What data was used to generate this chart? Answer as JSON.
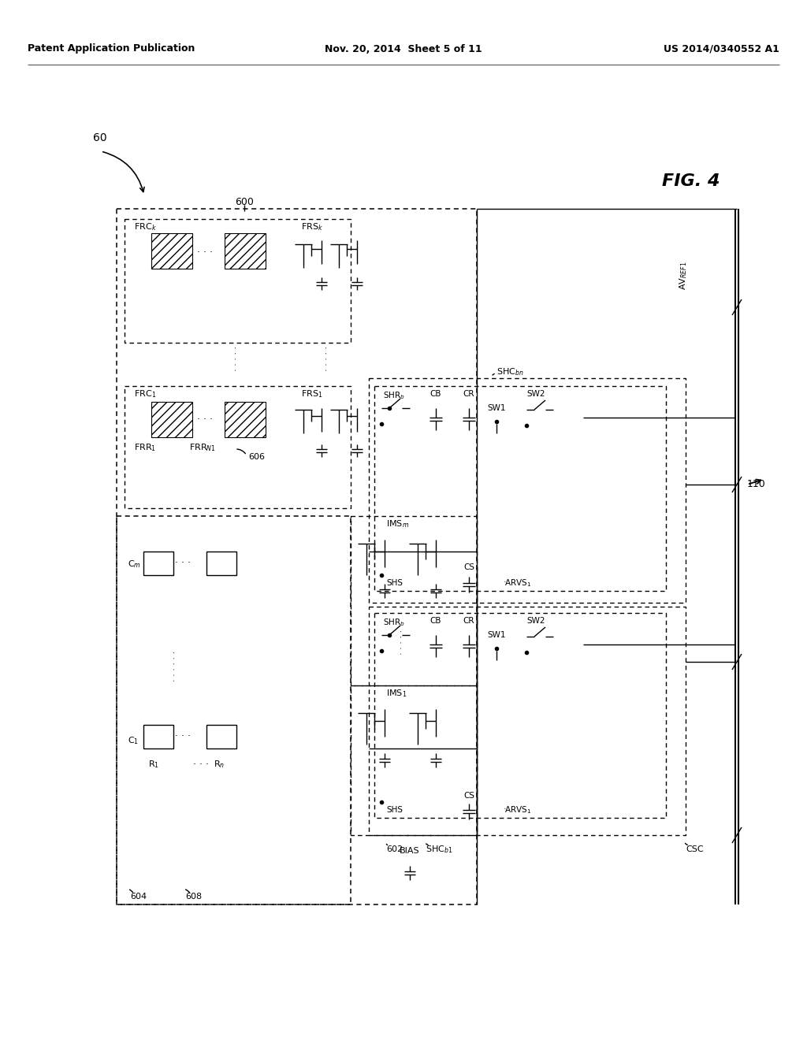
{
  "header_left": "Patent Application Publication",
  "header_center": "Nov. 20, 2014  Sheet 5 of 11",
  "header_right": "US 2014/0340552 A1",
  "bg_color": "#ffffff",
  "fig_number": "FIG. 4",
  "top_label": "60",
  "labels": {
    "n600": "600",
    "n604": "604",
    "n606": "606",
    "n608": "608",
    "n602": "602",
    "n110": "110",
    "FRCk": "FRC$_k$",
    "FRC1": "FRC$_1$",
    "FRSk": "FRS$_k$",
    "FRS1": "FRS$_1$",
    "FRR1": "FRR$_1$",
    "FRRNm": "FRR$_{N1}$",
    "IMSm": "IMS$_m$",
    "IMS1": "IMS$_1$",
    "Cm": "C$_m$",
    "C1": "C$_1$",
    "R1": "R$_1$",
    "Rn": "R$_n$",
    "BIAS": "BIAS",
    "SHCbn": "SHC$_{bn}$",
    "SHCb1": "SHC$_{b1}$",
    "CSC": "CSC",
    "AVREF1": "AV$_{REF1}$",
    "SHRb": "SHR$_b$",
    "CB": "CB",
    "CR": "CR",
    "SW1": "SW1",
    "SW2": "SW2",
    "SHS": "SHS",
    "CS": "CS",
    "ARVS1": "ARVS$_1$"
  }
}
